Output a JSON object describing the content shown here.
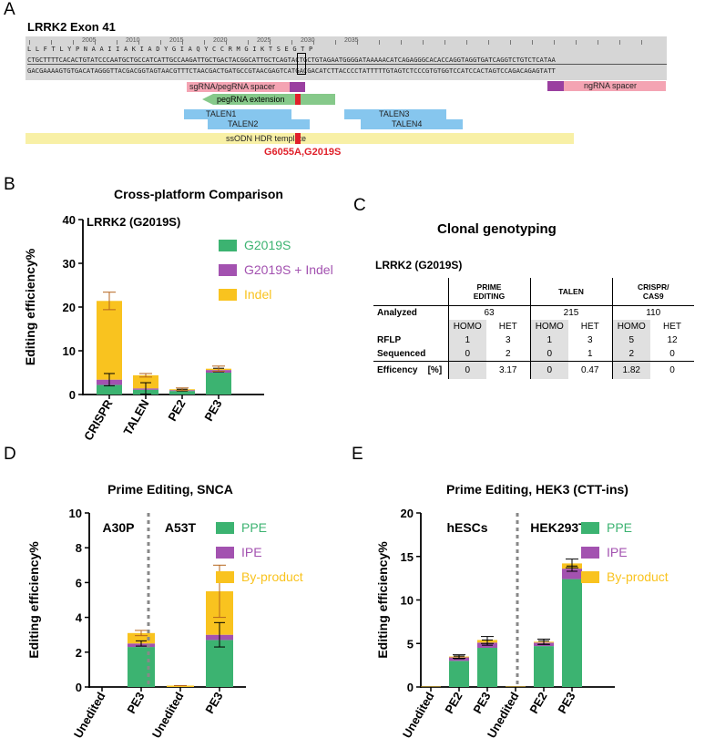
{
  "panel_a": {
    "letter": "A",
    "title": "LRRK2 Exon 41",
    "ruler_ticks": [
      "2005",
      "2010",
      "2015",
      "2020",
      "2025",
      "2030",
      "2035"
    ],
    "aa_seq": "L  L  F  T  L  Y  P  N  A  A  I  I  A  K  I  A  D  Y  G  I  A  Q  Y  C  C  R  M  G  I  K  T  S  E  G  T  P",
    "seq_top": "CTGCTTTTCACACTGTATCCCAATGCTGCCATCATTGCCAAGATTGCTGACTACGGCATTGCTCAGTACTGCTGTAGAATGGGGATAAAAACATCAGAGGGCACACCAGGTAGGTGATCAGGTCTGTCTCATAA",
    "seq_bottom": "GACGAAAAGTGTGACATAGGGTTACGACGGTAGTAACGTTTCTAACGACTGATGCCGTAACGAGTCATGACGACATCTTACCCCTATTTTTGTAGTCTCCCGTGTGGTCCATCCACTAGTCCAGACAGAGTATT",
    "features": {
      "sgrna": "sgRNA/pegRNA spacer",
      "pegrna_ext": "pegRNA extension",
      "ngrna": "ngRNA spacer",
      "talen1": "TALEN1",
      "talen2": "TALEN2",
      "talen3": "TALEN3",
      "talen4": "TALEN4",
      "ssodn": "ssODN HDR template",
      "mutation": "G6055A,G2019S"
    }
  },
  "panel_c": {
    "letter": "C",
    "title": "Clonal genotyping",
    "subtitle": "LRRK2 (G2019S)",
    "groups": [
      "PRIME EDITING",
      "TALEN",
      "CRISPR/ CAS9"
    ],
    "analyzed_label": "Analyzed",
    "analyzed": [
      "63",
      "215",
      "110"
    ],
    "subheads": [
      "HOMO",
      "HET",
      "HOMO",
      "HET",
      "HOMO",
      "HET"
    ],
    "rflp_label": "RFLP",
    "rflp": [
      "1",
      "3",
      "1",
      "3",
      "5",
      "12"
    ],
    "sequenced_label": "Sequenced",
    "sequenced": [
      "0",
      "2",
      "0",
      "1",
      "2",
      "0"
    ],
    "efficiency_label": "Efficency",
    "efficiency_unit": "[%]",
    "efficiency": [
      "0",
      "3.17",
      "0",
      "0.47",
      "1.82",
      "0"
    ]
  },
  "chart_data": [
    {
      "id": "B",
      "letter": "B",
      "type": "bar",
      "stacked": true,
      "title": "Cross-platform Comparison",
      "inner_title": "LRRK2 (G2019S)",
      "ylabel": "Editing efficiency%",
      "xlabel": "",
      "ylim": [
        0,
        40
      ],
      "yticks": [
        "0",
        "10",
        "20",
        "30",
        "40"
      ],
      "categories": [
        "CRISPR",
        "TALEN",
        "PE2",
        "PE3"
      ],
      "series": [
        {
          "name": "G2019S",
          "color": "#3cb371",
          "values": [
            2.2,
            1.1,
            0.8,
            5.0
          ]
        },
        {
          "name": "G2019S + Indel",
          "color": "#a352b0",
          "values": [
            1.2,
            0.3,
            0.2,
            0.6
          ]
        },
        {
          "name": "Indel",
          "color": "#f9c31f",
          "values": [
            18.0,
            3.0,
            0.2,
            0.3
          ]
        }
      ],
      "errors": [
        [
          2.0,
          1.4
        ],
        [
          0.4,
          1.3
        ],
        [
          0.3,
          0.2
        ],
        [
          0.6,
          0.4
        ]
      ],
      "error_color": "#b5651d"
    },
    {
      "id": "D",
      "letter": "D",
      "type": "bar",
      "stacked": true,
      "title": "Prime Editing, SNCA",
      "ylabel": "Editing efficiency%",
      "xlabel": "",
      "ylim": [
        0,
        10
      ],
      "yticks": [
        "0",
        "2",
        "4",
        "6",
        "8",
        "10"
      ],
      "group_labels": [
        "A30P",
        "A53T"
      ],
      "categories": [
        "Unedited",
        "PE3",
        "Unedited",
        "PE3"
      ],
      "series": [
        {
          "name": "PPE",
          "color": "#3cb371",
          "values": [
            0,
            2.3,
            0,
            2.7
          ]
        },
        {
          "name": "IPE",
          "color": "#a352b0",
          "values": [
            0,
            0.2,
            0,
            0.3
          ]
        },
        {
          "name": "By-product",
          "color": "#f9c31f",
          "values": [
            0,
            0.6,
            0.08,
            2.5
          ]
        }
      ],
      "errors": [
        [
          0,
          0
        ],
        [
          0.15,
          0.15
        ],
        [
          0,
          0.04
        ],
        [
          1.5,
          0.7
        ]
      ],
      "error_color": "#b5651d"
    },
    {
      "id": "E",
      "letter": "E",
      "type": "bar",
      "stacked": true,
      "title": "Prime Editing, HEK3 (CTT-ins)",
      "ylabel": "Editing efficiency%",
      "xlabel": "",
      "ylim": [
        0,
        20
      ],
      "yticks": [
        "0",
        "5",
        "10",
        "15",
        "20"
      ],
      "group_labels": [
        "hESCs",
        "HEK293T"
      ],
      "categories": [
        "Unedited",
        "PE2",
        "PE3",
        "Unedited",
        "PE2",
        "PE3"
      ],
      "series": [
        {
          "name": "PPE",
          "color": "#3cb371",
          "values": [
            0,
            3.0,
            4.5,
            0,
            4.7,
            12.4
          ]
        },
        {
          "name": "IPE",
          "color": "#a352b0",
          "values": [
            0,
            0.4,
            0.6,
            0,
            0.4,
            1.2
          ]
        },
        {
          "name": "By-product",
          "color": "#f9c31f",
          "values": [
            0.05,
            0.1,
            0.3,
            0.05,
            0.1,
            0.6
          ]
        }
      ],
      "errors": [
        [
          0,
          0
        ],
        [
          0.2,
          0.15
        ],
        [
          0.4,
          0.3
        ],
        [
          0,
          0
        ],
        [
          0.3,
          0.2
        ],
        [
          0.5,
          0.3
        ]
      ],
      "error_color": "#000000"
    }
  ]
}
